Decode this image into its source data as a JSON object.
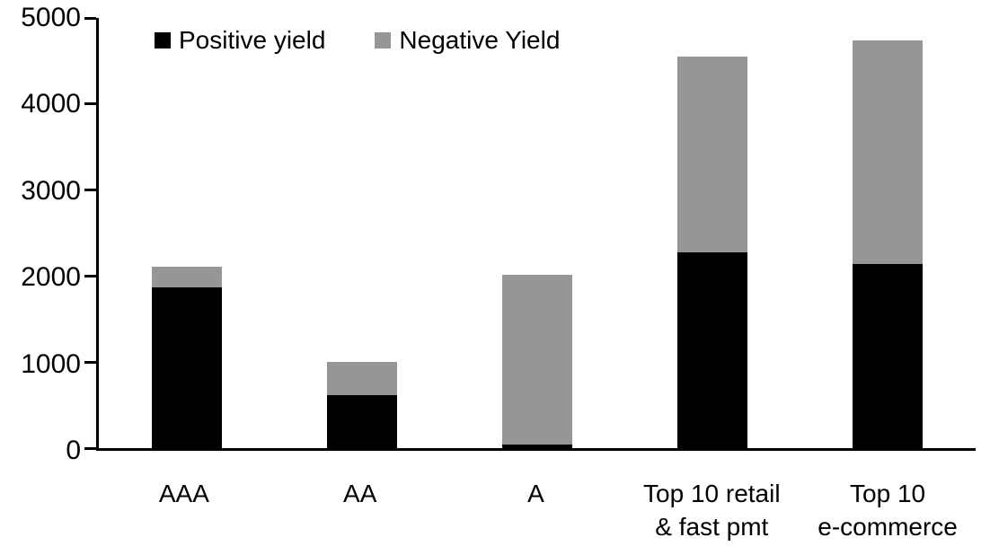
{
  "chart_data": {
    "type": "bar",
    "stacked": true,
    "title": "",
    "xlabel": "",
    "ylabel": "",
    "categories": [
      "AAA",
      "AA",
      "A",
      "Top 10 retail & fast pmt",
      "Top 10 e-commerce"
    ],
    "category_label_lines": [
      [
        "AAA"
      ],
      [
        "AA"
      ],
      [
        "A"
      ],
      [
        "Top 10 retail",
        "& fast pmt"
      ],
      [
        "Top 10",
        "e-commerce"
      ]
    ],
    "series": [
      {
        "name": "Positive yield",
        "color": "#000000",
        "values": [
          1870,
          620,
          40,
          2280,
          2140
        ]
      },
      {
        "name": "Negative Yield",
        "color": "#969696",
        "values": [
          240,
          380,
          1980,
          2270,
          2600
        ]
      }
    ],
    "stack_totals": [
      2110,
      1000,
      2020,
      4550,
      4740
    ],
    "ylim": [
      0,
      5000
    ],
    "y_ticks": [
      0,
      1000,
      2000,
      3000,
      4000,
      5000
    ],
    "grid": false,
    "legend_position": "top-inside",
    "axis_color": "#000000",
    "background_color": "#ffffff"
  }
}
